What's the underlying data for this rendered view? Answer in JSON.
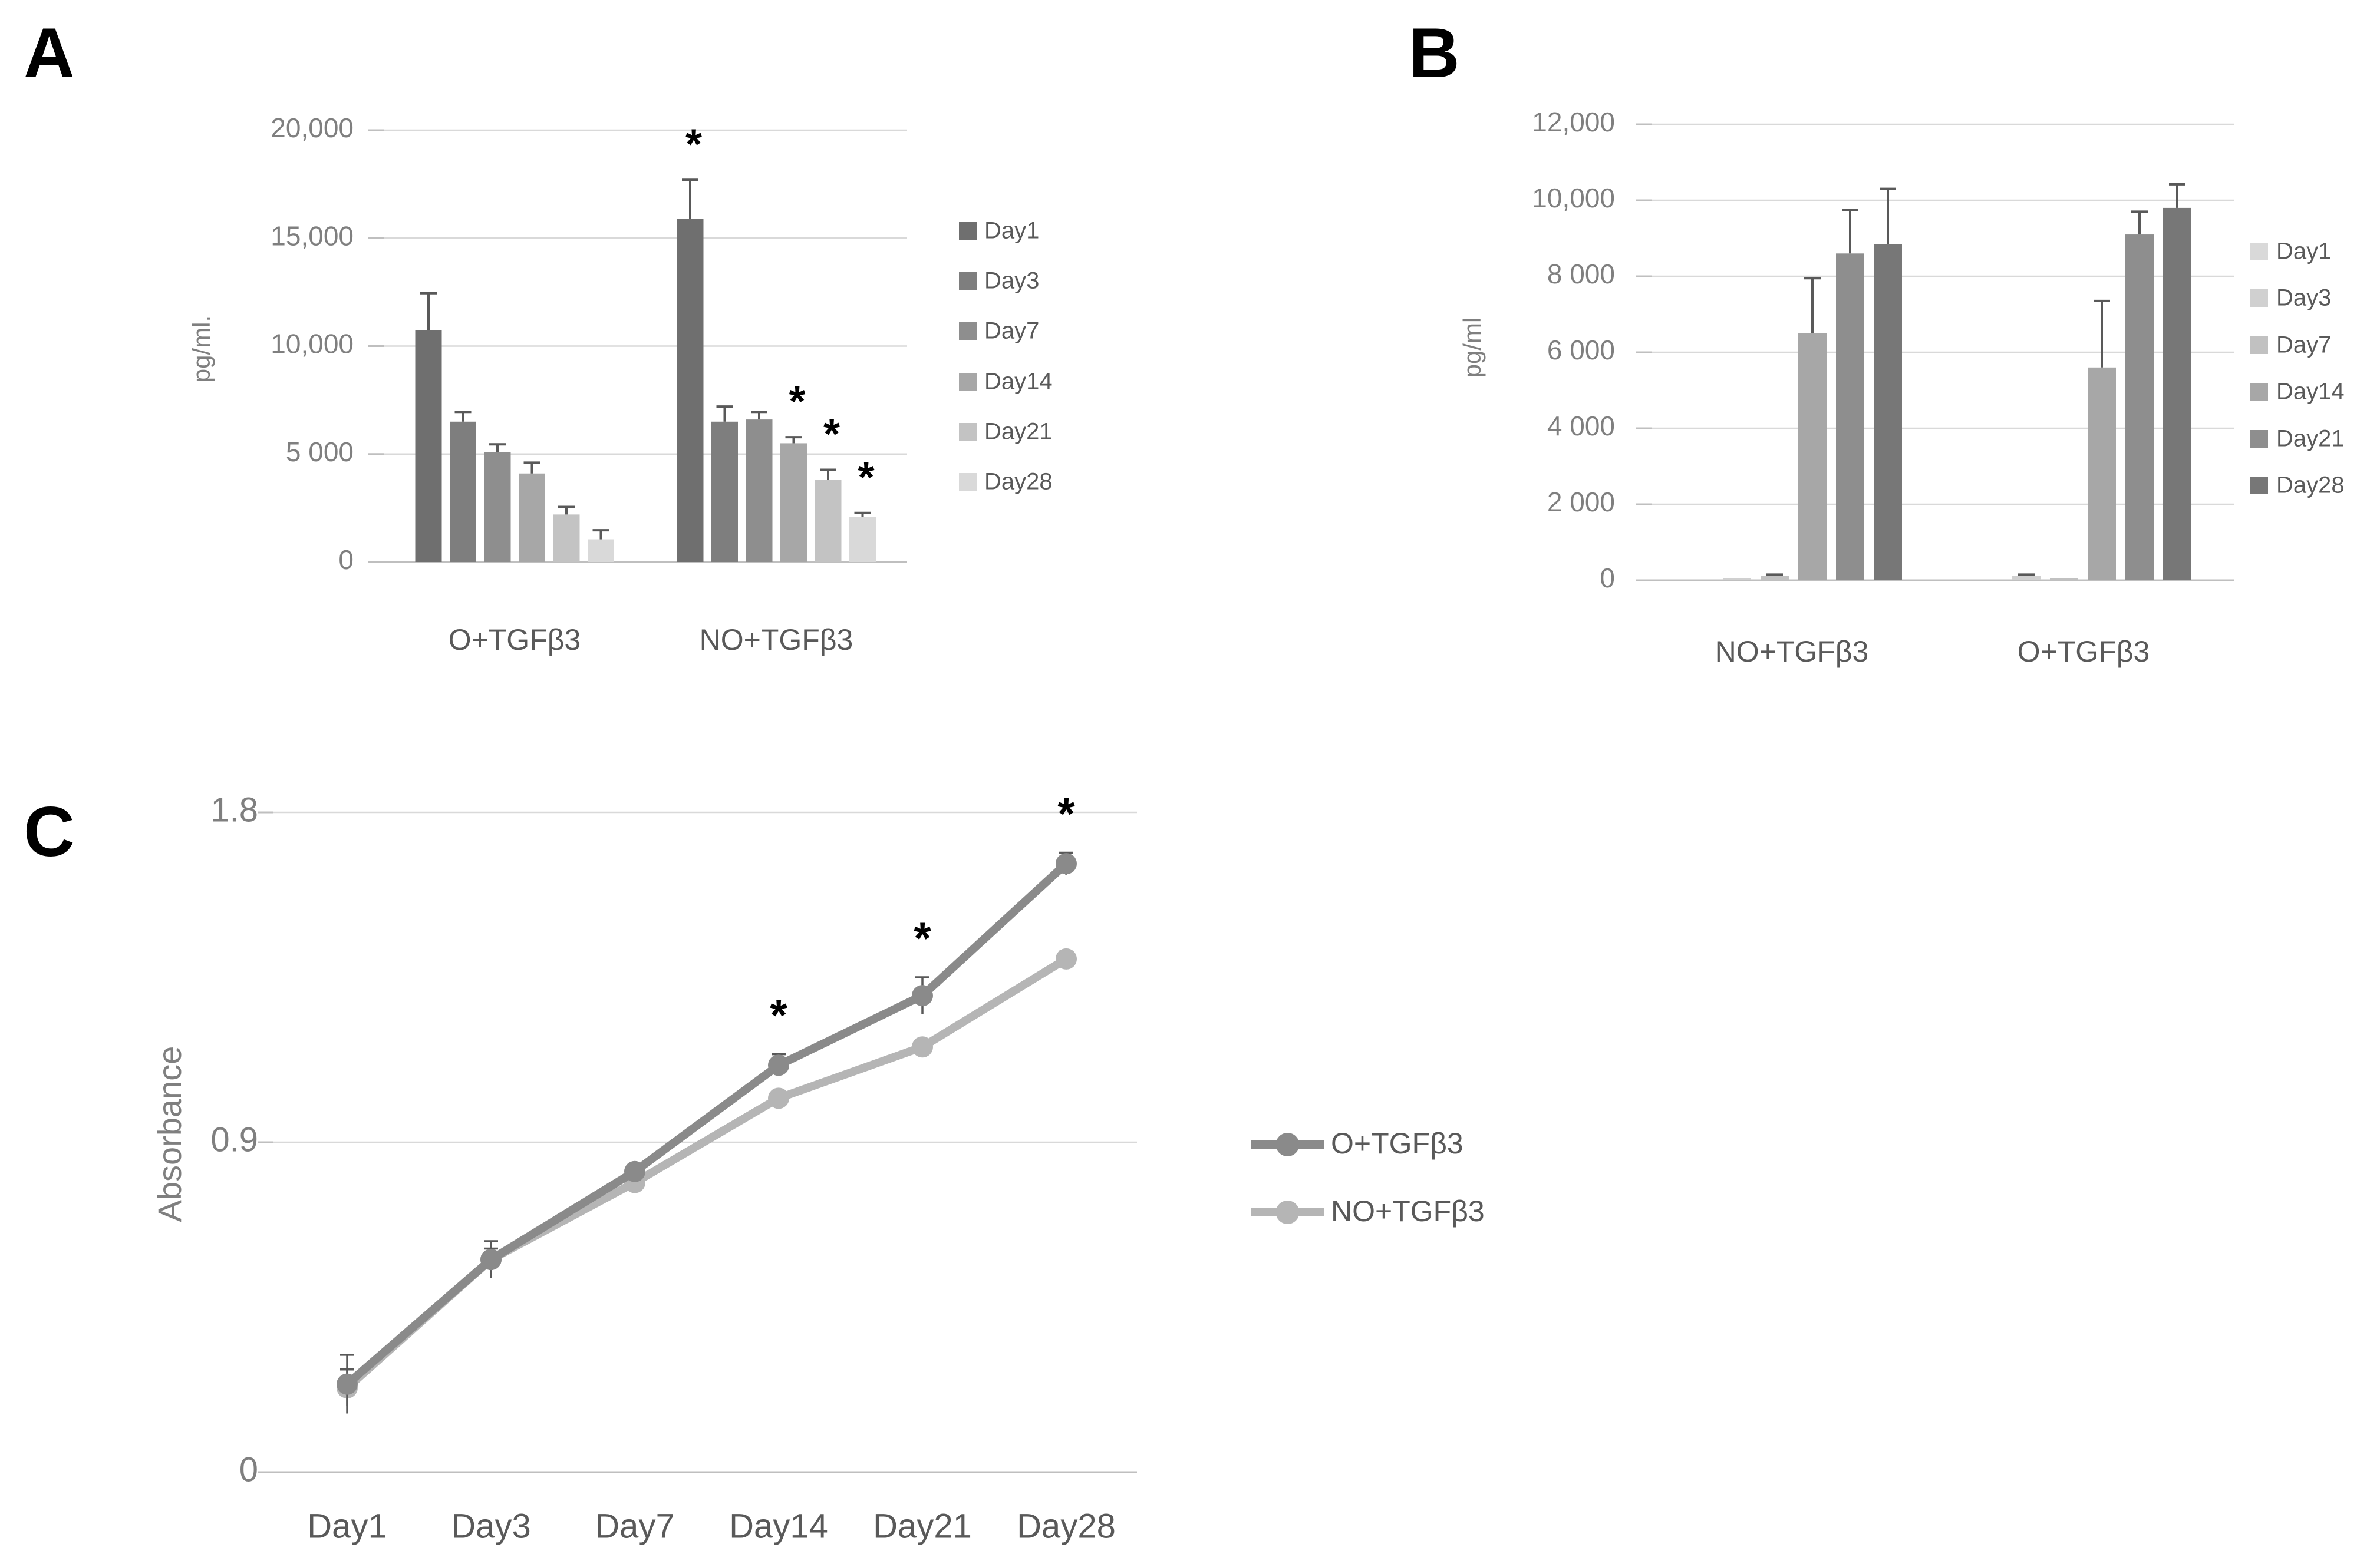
{
  "panels": [
    {
      "id": "A",
      "label": "A"
    },
    {
      "id": "B",
      "label": "B"
    },
    {
      "id": "C",
      "label": "C"
    }
  ],
  "colors": {
    "background": "#ffffff",
    "grid": "#d9d9d9",
    "axis": "#bfbfbf",
    "tick_text": "#7f7f7f",
    "label_text": "#595959",
    "error_bar": "#595959",
    "asterisk": "#000000"
  },
  "chart_data": [
    {
      "panel": "A",
      "type": "bar",
      "ylabel": "pg/ml.",
      "ylim": [
        0,
        20000
      ],
      "ytick_values": [
        0,
        5000,
        10000,
        15000,
        20000
      ],
      "ytick_labels": [
        "0",
        "5 000",
        "10,000",
        "15,000",
        "20,000"
      ],
      "groups": [
        "O+TGFβ3",
        "NO+TGFβ3"
      ],
      "grid": true,
      "legend_position": "right",
      "significance_symbol": "*",
      "series": [
        {
          "name": "Day1",
          "color": "#6f6f6f",
          "values": [
            10750,
            15900
          ],
          "errors": [
            1700,
            1800
          ]
        },
        {
          "name": "Day3",
          "color": "#7e7e7e",
          "values": [
            6500,
            6500
          ],
          "errors": [
            450,
            700
          ]
        },
        {
          "name": "Day7",
          "color": "#8e8e8e",
          "values": [
            5100,
            6600
          ],
          "errors": [
            350,
            350
          ]
        },
        {
          "name": "Day14",
          "color": "#a7a7a7",
          "values": [
            4100,
            5500
          ],
          "errors": [
            500,
            280
          ]
        },
        {
          "name": "Day21",
          "color": "#c3c3c3",
          "values": [
            2200,
            3800
          ],
          "errors": [
            350,
            470
          ]
        },
        {
          "name": "Day28",
          "color": "#d9d9d9",
          "values": [
            1050,
            2100
          ],
          "errors": [
            420,
            170
          ]
        }
      ],
      "significance": [
        {
          "group": "NO+TGFβ3",
          "series": "Day1"
        },
        {
          "group": "NO+TGFβ3",
          "series": "Day14"
        },
        {
          "group": "NO+TGFβ3",
          "series": "Day21"
        },
        {
          "group": "NO+TGFβ3",
          "series": "Day28"
        }
      ]
    },
    {
      "panel": "B",
      "type": "bar",
      "ylabel": "pg/ml",
      "ylim": [
        0,
        12000
      ],
      "ytick_values": [
        0,
        2000,
        4000,
        6000,
        8000,
        10000,
        12000
      ],
      "ytick_labels": [
        "0",
        "2 000",
        "4 000",
        "6 000",
        "8 000",
        "10,000",
        "12,000"
      ],
      "groups": [
        "NO+TGFβ3",
        "O+TGFβ3"
      ],
      "grid": true,
      "legend_position": "right",
      "significance_symbol": "*",
      "series": [
        {
          "name": "Day1",
          "color": "#d9d9d9",
          "values": [
            0,
            0
          ],
          "errors": [
            0,
            0
          ]
        },
        {
          "name": "Day3",
          "color": "#d0d0d0",
          "values": [
            50,
            110
          ],
          "errors": [
            0,
            40
          ]
        },
        {
          "name": "Day7",
          "color": "#c1c1c1",
          "values": [
            110,
            50
          ],
          "errors": [
            40,
            0
          ]
        },
        {
          "name": "Day14",
          "color": "#a7a7a7",
          "values": [
            6500,
            5600
          ],
          "errors": [
            1450,
            1750
          ]
        },
        {
          "name": "Day21",
          "color": "#8e8e8e",
          "values": [
            8600,
            9100
          ],
          "errors": [
            1150,
            600
          ]
        },
        {
          "name": "Day28",
          "color": "#777777",
          "values": [
            8850,
            9800
          ],
          "errors": [
            1450,
            620
          ]
        }
      ],
      "significance": []
    },
    {
      "panel": "C",
      "type": "line",
      "ylabel": "Absorbance",
      "ylim": [
        0,
        1.8
      ],
      "ytick_values": [
        0,
        0.9,
        1.8
      ],
      "ytick_labels": [
        "0",
        "0.9",
        "1.8"
      ],
      "categories": [
        "Day1",
        "Day3",
        "Day7",
        "Day14",
        "Day21",
        "Day28"
      ],
      "grid": true,
      "legend_position": "right",
      "significance_symbol": "*",
      "series": [
        {
          "name": "O+TGFβ3",
          "color": "#8a8a8a",
          "values": [
            0.24,
            0.58,
            0.82,
            1.11,
            1.3,
            1.66
          ],
          "errors": [
            0.08,
            0.05,
            0.02,
            0.03,
            0.05,
            0.03
          ]
        },
        {
          "name": "NO+TGFβ3",
          "color": "#b5b5b5",
          "values": [
            0.23,
            0.58,
            0.79,
            1.02,
            1.16,
            1.4
          ],
          "errors": [
            0.05,
            0.03,
            0.02,
            0.02,
            0.02,
            0.02
          ]
        }
      ],
      "significance": [
        {
          "series": "O+TGFβ3",
          "category": "Day14"
        },
        {
          "series": "O+TGFβ3",
          "category": "Day21"
        },
        {
          "series": "O+TGFβ3",
          "category": "Day28"
        }
      ]
    }
  ]
}
